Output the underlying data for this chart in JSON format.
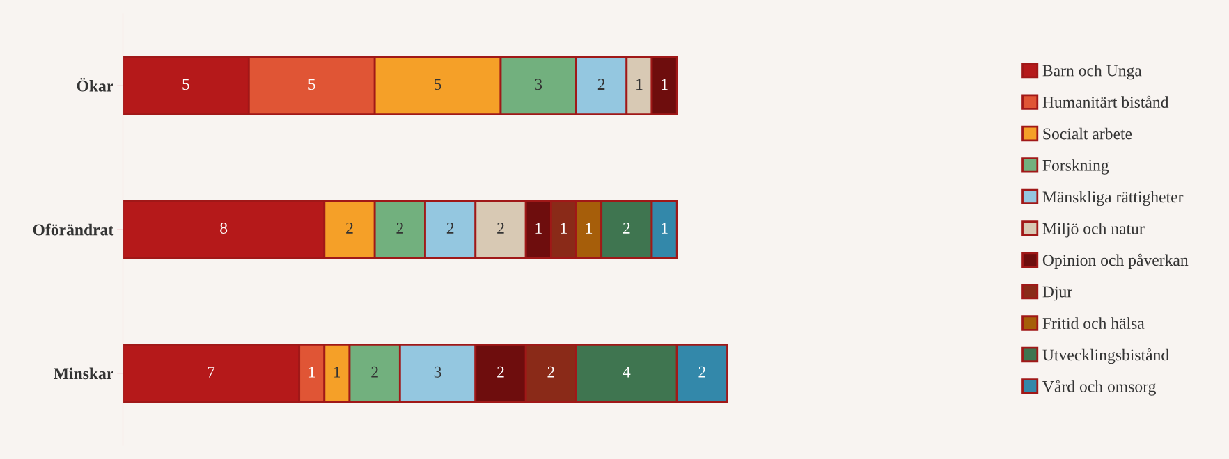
{
  "chart_data": {
    "type": "bar",
    "orientation": "horizontal",
    "stacked": true,
    "data_labels": true,
    "legend": "right",
    "grid": false,
    "tick_labels": "y",
    "categories": [
      "Ökar",
      "Oförändrat",
      "Minskar"
    ],
    "series": [
      {
        "name": "Barn och Unga",
        "color": "#b5191a",
        "values": [
          5,
          8,
          7
        ]
      },
      {
        "name": "Humanitärt bistånd",
        "color": "#e05535",
        "values": [
          5,
          null,
          1
        ]
      },
      {
        "name": "Socialt arbete",
        "color": "#f5a028",
        "values": [
          5,
          2,
          1
        ]
      },
      {
        "name": "Forskning",
        "color": "#72b07e",
        "values": [
          3,
          2,
          2
        ]
      },
      {
        "name": "Mänskliga rättigheter",
        "color": "#94c7e0",
        "values": [
          2,
          2,
          3
        ]
      },
      {
        "name": "Miljö och natur",
        "color": "#d8c9b4",
        "values": [
          1,
          2,
          null
        ]
      },
      {
        "name": "Opinion och påverkan",
        "color": "#6e0d0d",
        "values": [
          1,
          1,
          2
        ]
      },
      {
        "name": "Djur",
        "color": "#8a2a18",
        "values": [
          null,
          1,
          2
        ]
      },
      {
        "name": "Fritid och hälsa",
        "color": "#a65e0a",
        "values": [
          null,
          1,
          null
        ]
      },
      {
        "name": "Utvecklingsbistånd",
        "color": "#3f7550",
        "values": [
          null,
          2,
          4
        ]
      },
      {
        "name": "Vård och omsorg",
        "color": "#3388aa",
        "values": [
          null,
          1,
          2
        ]
      }
    ]
  }
}
